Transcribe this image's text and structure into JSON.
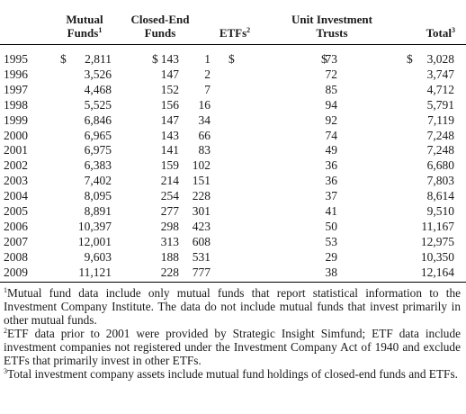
{
  "headers": {
    "mutual_funds": {
      "line1": "Mutual",
      "line2": "Funds",
      "sup": "1"
    },
    "closed_end": {
      "line1": "Closed-End",
      "line2": "Funds"
    },
    "etfs": {
      "label": "ETFs",
      "sup": "2"
    },
    "uit": {
      "line1": "Unit Investment",
      "line2": "Trusts"
    },
    "total": {
      "label": "Total",
      "sup": "3"
    }
  },
  "currency_symbols": {
    "mutual": "$",
    "closed": "$",
    "etf": "$",
    "uit": "$",
    "total": "$"
  },
  "rows": [
    {
      "year": "1995",
      "mutual": "2,811",
      "closed": "143",
      "etf": "1",
      "uit": "73",
      "total": "3,028"
    },
    {
      "year": "1996",
      "mutual": "3,526",
      "closed": "147",
      "etf": "2",
      "uit": "72",
      "total": "3,747"
    },
    {
      "year": "1997",
      "mutual": "4,468",
      "closed": "152",
      "etf": "7",
      "uit": "85",
      "total": "4,712"
    },
    {
      "year": "1998",
      "mutual": "5,525",
      "closed": "156",
      "etf": "16",
      "uit": "94",
      "total": "5,791"
    },
    {
      "year": "1999",
      "mutual": "6,846",
      "closed": "147",
      "etf": "34",
      "uit": "92",
      "total": "7,119"
    },
    {
      "year": "2000",
      "mutual": "6,965",
      "closed": "143",
      "etf": "66",
      "uit": "74",
      "total": "7,248"
    },
    {
      "year": "2001",
      "mutual": "6,975",
      "closed": "141",
      "etf": "83",
      "uit": "49",
      "total": "7,248"
    },
    {
      "year": "2002",
      "mutual": "6,383",
      "closed": "159",
      "etf": "102",
      "uit": "36",
      "total": "6,680"
    },
    {
      "year": "2003",
      "mutual": "7,402",
      "closed": "214",
      "etf": "151",
      "uit": "36",
      "total": "7,803"
    },
    {
      "year": "2004",
      "mutual": "8,095",
      "closed": "254",
      "etf": "228",
      "uit": "37",
      "total": "8,614"
    },
    {
      "year": "2005",
      "mutual": "8,891",
      "closed": "277",
      "etf": "301",
      "uit": "41",
      "total": "9,510"
    },
    {
      "year": "2006",
      "mutual": "10,397",
      "closed": "298",
      "etf": "423",
      "uit": "50",
      "total": "11,167"
    },
    {
      "year": "2007",
      "mutual": "12,001",
      "closed": "313",
      "etf": "608",
      "uit": "53",
      "total": "12,975"
    },
    {
      "year": "2008",
      "mutual": "9,603",
      "closed": "188",
      "etf": "531",
      "uit": "29",
      "total": "10,350"
    },
    {
      "year": "2009",
      "mutual": "11,121",
      "closed": "228",
      "etf": "777",
      "uit": "38",
      "total": "12,164"
    }
  ],
  "footnotes": [
    {
      "sup": "1",
      "text": "Mutual fund data include only mutual funds that report statistical information to the Investment Company Institute. The data do not include mutual funds that invest primarily in other mutual funds."
    },
    {
      "sup": "2",
      "text": "ETF data prior to 2001 were provided by Strategic Insight Simfund; ETF data include investment companies not registered under the Investment Company Act of 1940 and exclude ETFs that primarily invest in other ETFs."
    },
    {
      "sup": "3",
      "text": "Total investment company assets include mutual fund holdings of closed-end funds and ETFs."
    }
  ]
}
